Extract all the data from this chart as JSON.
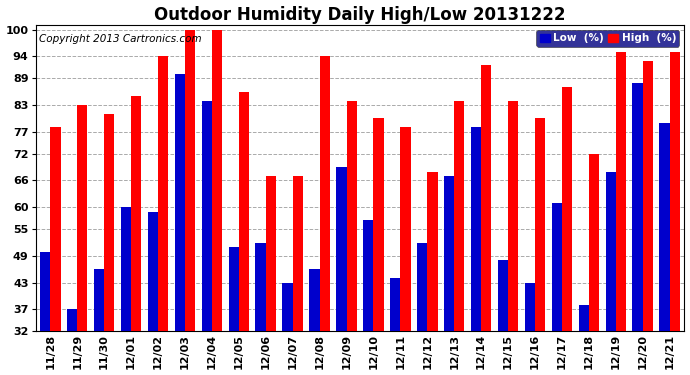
{
  "title": "Outdoor Humidity Daily High/Low 20131222",
  "copyright": "Copyright 2013 Cartronics.com",
  "legend_low": "Low  (%)",
  "legend_high": "High  (%)",
  "categories": [
    "11/28",
    "11/29",
    "11/30",
    "12/01",
    "12/02",
    "12/03",
    "12/04",
    "12/05",
    "12/06",
    "12/07",
    "12/08",
    "12/09",
    "12/10",
    "12/11",
    "12/12",
    "12/13",
    "12/14",
    "12/15",
    "12/16",
    "12/17",
    "12/18",
    "12/19",
    "12/20",
    "12/21"
  ],
  "high_values": [
    78,
    83,
    81,
    85,
    94,
    100,
    100,
    86,
    67,
    67,
    94,
    84,
    80,
    78,
    68,
    84,
    92,
    84,
    80,
    87,
    72,
    95,
    93,
    95
  ],
  "low_values": [
    50,
    37,
    46,
    60,
    59,
    90,
    84,
    51,
    52,
    43,
    46,
    69,
    57,
    44,
    52,
    67,
    78,
    48,
    43,
    61,
    38,
    68,
    88,
    79
  ],
  "bar_color_high": "#ff0000",
  "bar_color_low": "#0000cc",
  "background_color": "#ffffff",
  "grid_color": "#aaaaaa",
  "yticks": [
    32,
    37,
    43,
    49,
    55,
    60,
    66,
    72,
    77,
    83,
    89,
    94,
    100
  ],
  "ymin": 32,
  "ymax": 101,
  "title_fontsize": 12,
  "tick_fontsize": 8,
  "copyright_fontsize": 7.5
}
